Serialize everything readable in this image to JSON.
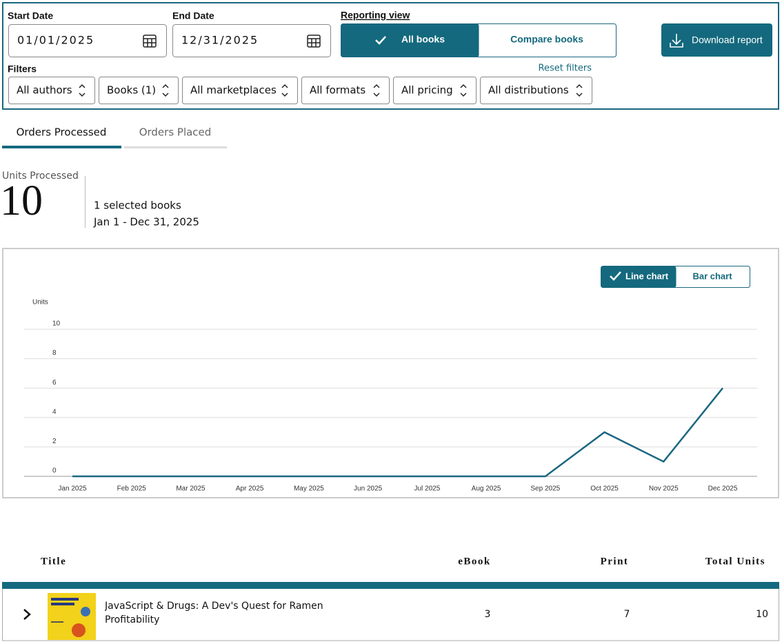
{
  "filters": {
    "start_label": "Start Date",
    "start_value": "01/01/2025",
    "end_label": "End Date",
    "end_value": "12/31/2025",
    "view_label": "Reporting view",
    "view_options": [
      "All books",
      "Compare books"
    ],
    "download": "Download report",
    "filters_label": "Filters",
    "reset": "Reset filters",
    "dropdowns": [
      "All authors",
      "Books (1)",
      "All marketplaces",
      "All formats",
      "All pricing",
      "All distributions"
    ]
  },
  "tabs": [
    "Orders Processed",
    "Orders Placed"
  ],
  "summary": {
    "label": "Units Processed",
    "total": 10,
    "books": "1 selected books",
    "range": "Jan 1 - Dec 31, 2025"
  },
  "chart_toggle": [
    "Line chart",
    "Bar chart"
  ],
  "chart_data": {
    "type": "line",
    "y_label": "Units",
    "categories": [
      "Jan 2025",
      "Feb 2025",
      "Mar 2025",
      "Apr 2025",
      "May 2025",
      "Jun 2025",
      "Jul 2025",
      "Aug 2025",
      "Sep 2025",
      "Oct 2025",
      "Nov 2025",
      "Dec 2025"
    ],
    "values": [
      0,
      0,
      0,
      0,
      0,
      0,
      0,
      0,
      0,
      3,
      1,
      6
    ],
    "color": "#1a6680",
    "ylim": [
      0,
      10
    ],
    "yticks": [
      0,
      2,
      4,
      6,
      8,
      10
    ],
    "grid": true
  },
  "table": {
    "headers": [
      "Title",
      "eBook",
      "Print",
      "Total Units"
    ],
    "rows": [
      [
        "JavaScript & Drugs: A Dev's Quest for Ramen Profitability",
        3,
        7,
        10
      ]
    ]
  }
}
